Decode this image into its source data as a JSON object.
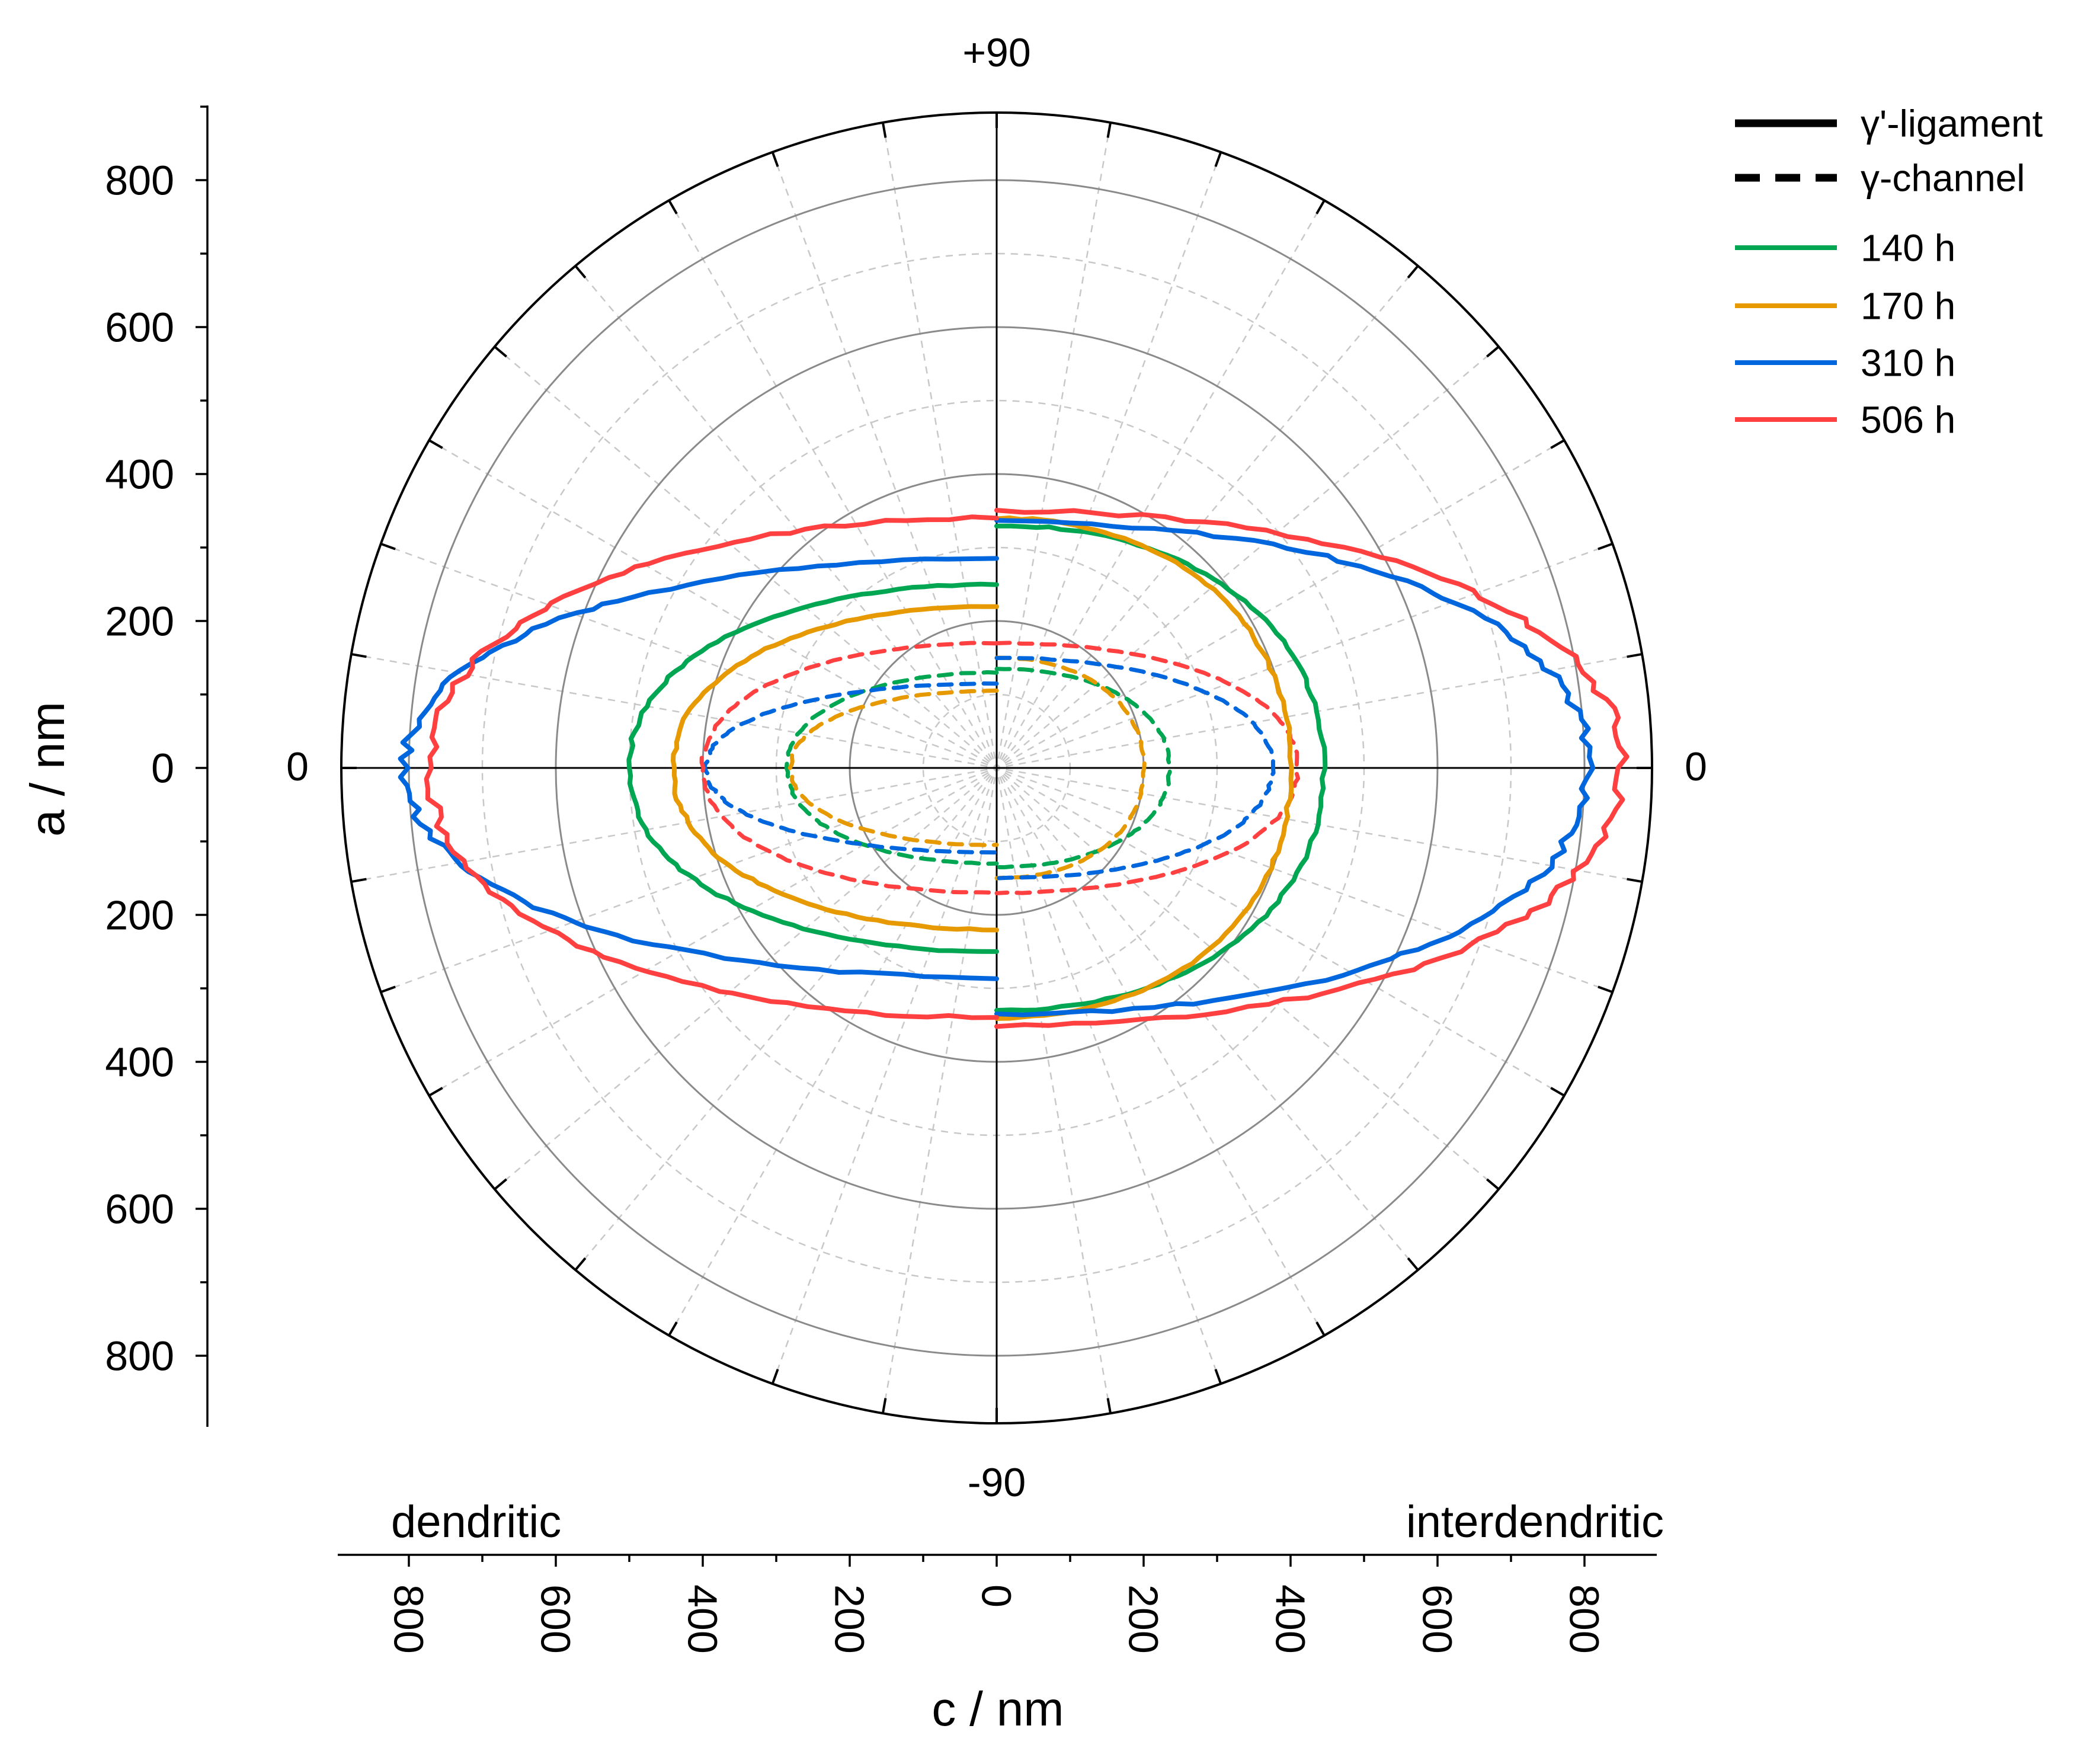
{
  "chart_data": {
    "type": "polar-line",
    "title": "",
    "angle_labels": {
      "top": "+90",
      "bottom": "-90",
      "left": "0",
      "right": "0"
    },
    "y_axis": {
      "label": "a / nm",
      "ticks": [
        800,
        600,
        400,
        200,
        0,
        200,
        400,
        600,
        800
      ],
      "range": [
        -900,
        900
      ]
    },
    "x_axis": {
      "label": "c / nm",
      "ticks": [
        800,
        600,
        400,
        200,
        0,
        200,
        400,
        600,
        800
      ],
      "range": [
        -900,
        900
      ]
    },
    "side_labels": {
      "left": "dendritic",
      "right": "interdendritic"
    },
    "radial_rings_nm": [
      200,
      400,
      600,
      800
    ],
    "legend": {
      "styles": [
        {
          "name": "γ'-ligament",
          "dash": "solid"
        },
        {
          "name": "γ-channel",
          "dash": "dashed"
        }
      ],
      "series": [
        {
          "name": "140 h",
          "color": "#00a651"
        },
        {
          "name": "170 h",
          "color": "#e69900"
        },
        {
          "name": "310 h",
          "color": "#0066dd"
        },
        {
          "name": "506 h",
          "color": "#ff4040"
        }
      ]
    },
    "series": [
      {
        "name": "140 h",
        "kind": "γ'-ligament",
        "color": "#00a651",
        "dendritic": {
          "c_max": 500,
          "a_max": 250
        },
        "interdendritic": {
          "c_max": 445,
          "a_max": 330
        }
      },
      {
        "name": "170 h",
        "kind": "γ'-ligament",
        "color": "#e69900",
        "dendritic": {
          "c_max": 440,
          "a_max": 220
        },
        "interdendritic": {
          "c_max": 400,
          "a_max": 340
        }
      },
      {
        "name": "310 h",
        "kind": "γ'-ligament",
        "color": "#0066dd",
        "dendritic": {
          "c_max": 805,
          "a_max": 285
        },
        "interdendritic": {
          "c_max": 805,
          "a_max": 335
        }
      },
      {
        "name": "506 h",
        "kind": "γ'-ligament",
        "color": "#ff4040",
        "dendritic": {
          "c_max": 770,
          "a_max": 340
        },
        "interdendritic": {
          "c_max": 850,
          "a_max": 350
        }
      },
      {
        "name": "140 h",
        "kind": "γ-channel",
        "color": "#00a651",
        "dendritic": {
          "c_max": 285,
          "a_max": 130
        },
        "interdendritic": {
          "c_max": 235,
          "a_max": 135
        }
      },
      {
        "name": "170 h",
        "kind": "γ-channel",
        "color": "#e69900",
        "dendritic": {
          "c_max": 280,
          "a_max": 105
        },
        "interdendritic": {
          "c_max": 200,
          "a_max": 150
        }
      },
      {
        "name": "310 h",
        "kind": "γ-channel",
        "color": "#0066dd",
        "dendritic": {
          "c_max": 395,
          "a_max": 115
        },
        "interdendritic": {
          "c_max": 375,
          "a_max": 150
        }
      },
      {
        "name": "506 h",
        "kind": "γ-channel",
        "color": "#ff4040",
        "dendritic": {
          "c_max": 400,
          "a_max": 170
        },
        "interdendritic": {
          "c_max": 410,
          "a_max": 170
        }
      }
    ]
  }
}
